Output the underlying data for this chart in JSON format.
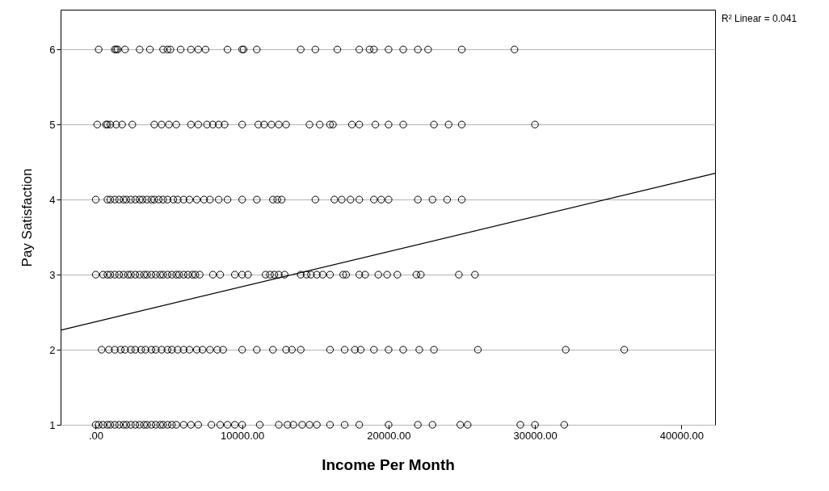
{
  "chart_data": {
    "type": "scatter",
    "xlabel": "Income Per Month",
    "ylabel": "Pay Satisfaction",
    "annotations": [
      "R² Linear = 0.041"
    ],
    "xlim": [
      -2400,
      42300
    ],
    "ylim": [
      1,
      6.53
    ],
    "xticks": [
      {
        "value": 0,
        "label": ".00"
      },
      {
        "value": 10000,
        "label": "10000.00"
      },
      {
        "value": 20000,
        "label": "20000.00"
      },
      {
        "value": 30000,
        "label": "30000.00"
      },
      {
        "value": 40000,
        "label": "40000.00"
      }
    ],
    "yticks": [
      1,
      2,
      3,
      4,
      5,
      6
    ],
    "grid": "y",
    "marker": "circle",
    "series": [
      {
        "color": "#000000",
        "x": [
          0,
          200,
          500,
          800,
          1000,
          1300,
          1600,
          1900,
          2100,
          2400,
          2700,
          3000,
          3300,
          3500,
          3800,
          4100,
          4400,
          4600,
          4900,
          5200,
          5500,
          6000,
          6500,
          7000,
          7900,
          8500,
          9000,
          9500,
          10000,
          11200,
          12500,
          13100,
          13500,
          14100,
          14600,
          15100,
          16000,
          17000,
          18000,
          20000,
          22000,
          23000,
          24900,
          25400,
          29000,
          30000,
          32000
        ],
        "values": [
          1,
          1,
          1,
          1,
          1,
          1,
          1,
          1,
          1,
          1,
          1,
          1,
          1,
          1,
          1,
          1,
          1,
          1,
          1,
          1,
          1,
          1,
          1,
          1,
          1,
          1,
          1,
          1,
          1,
          1,
          1,
          1,
          1,
          1,
          1,
          1,
          1,
          1,
          1,
          1,
          1,
          1,
          1,
          1,
          1,
          1,
          1
        ]
      },
      {
        "color": "#000000",
        "x": [
          400,
          900,
          1300,
          1700,
          2000,
          2400,
          2700,
          3100,
          3400,
          3800,
          4100,
          4500,
          4900,
          5200,
          5600,
          6000,
          6400,
          6900,
          7300,
          7800,
          8300,
          8700,
          10000,
          11000,
          12100,
          13000,
          13400,
          14000,
          16000,
          17000,
          17700,
          18100,
          19000,
          20000,
          21000,
          22100,
          23100,
          26100,
          32100,
          36100
        ],
        "values": [
          2,
          2,
          2,
          2,
          2,
          2,
          2,
          2,
          2,
          2,
          2,
          2,
          2,
          2,
          2,
          2,
          2,
          2,
          2,
          2,
          2,
          2,
          2,
          2,
          2,
          2,
          2,
          2,
          2,
          2,
          2,
          2,
          2,
          2,
          2,
          2,
          2,
          2,
          2,
          2
        ]
      },
      {
        "color": "#000000",
        "x": [
          0,
          500,
          800,
          1000,
          1300,
          1600,
          1900,
          2200,
          2400,
          2700,
          3000,
          3300,
          3500,
          3800,
          4100,
          4400,
          4600,
          4900,
          5200,
          5500,
          5700,
          6000,
          6300,
          6600,
          6800,
          7100,
          8000,
          8500,
          9500,
          10000,
          10400,
          11600,
          11900,
          12200,
          12500,
          12900,
          14000,
          14400,
          14700,
          15100,
          15500,
          16000,
          16900,
          17100,
          18000,
          18400,
          19300,
          19900,
          20600,
          21900,
          22200,
          24800,
          25900
        ],
        "values": [
          3,
          3,
          3,
          3,
          3,
          3,
          3,
          3,
          3,
          3,
          3,
          3,
          3,
          3,
          3,
          3,
          3,
          3,
          3,
          3,
          3,
          3,
          3,
          3,
          3,
          3,
          3,
          3,
          3,
          3,
          3,
          3,
          3,
          3,
          3,
          3,
          3,
          3,
          3,
          3,
          3,
          3,
          3,
          3,
          3,
          3,
          3,
          3,
          3,
          3,
          3,
          3,
          3
        ]
      },
      {
        "color": "#000000",
        "x": [
          0,
          800,
          1000,
          1300,
          1600,
          1900,
          2100,
          2400,
          2700,
          3000,
          3200,
          3500,
          3800,
          4000,
          4300,
          4600,
          4900,
          5300,
          5600,
          6000,
          6400,
          6900,
          7400,
          7800,
          8400,
          9000,
          10000,
          11000,
          12100,
          12400,
          12700,
          15000,
          16300,
          16800,
          17400,
          18000,
          19000,
          19500,
          20000,
          22000,
          23000,
          24000,
          25000
        ],
        "values": [
          4,
          4,
          4,
          4,
          4,
          4,
          4,
          4,
          4,
          4,
          4,
          4,
          4,
          4,
          4,
          4,
          4,
          4,
          4,
          4,
          4,
          4,
          4,
          4,
          4,
          4,
          4,
          4,
          4,
          4,
          4,
          4,
          4,
          4,
          4,
          4,
          4,
          4,
          4,
          4,
          4,
          4,
          4
        ]
      },
      {
        "color": "#000000",
        "x": [
          100,
          700,
          800,
          1000,
          1400,
          1800,
          2500,
          4000,
          4500,
          5000,
          5500,
          6500,
          7000,
          7600,
          8000,
          8400,
          8800,
          10000,
          11100,
          11500,
          12000,
          12500,
          13000,
          14600,
          15300,
          16000,
          16200,
          17500,
          18000,
          19100,
          20000,
          21000,
          23100,
          24100,
          25000,
          30000
        ],
        "values": [
          5,
          5,
          5,
          5,
          5,
          5,
          5,
          5,
          5,
          5,
          5,
          5,
          5,
          5,
          5,
          5,
          5,
          5,
          5,
          5,
          5,
          5,
          5,
          5,
          5,
          5,
          5,
          5,
          5,
          5,
          5,
          5,
          5,
          5,
          5,
          5
        ]
      },
      {
        "color": "#000000",
        "x": [
          200,
          1300,
          1400,
          1500,
          2000,
          3000,
          3700,
          4600,
          4900,
          5100,
          5800,
          6500,
          7000,
          7500,
          9000,
          10000,
          10100,
          11000,
          14000,
          15000,
          16500,
          18000,
          18700,
          19000,
          20000,
          21000,
          22000,
          22700,
          25000,
          28600
        ],
        "values": [
          6,
          6,
          6,
          6,
          6,
          6,
          6,
          6,
          6,
          6,
          6,
          6,
          6,
          6,
          6,
          6,
          6,
          6,
          6,
          6,
          6,
          6,
          6,
          6,
          6,
          6,
          6,
          6,
          6,
          6
        ]
      },
      {
        "type": "line",
        "marker": "none",
        "color": "#000000",
        "x": [
          -2400,
          42300
        ],
        "values": [
          2.26,
          4.35
        ]
      }
    ]
  }
}
